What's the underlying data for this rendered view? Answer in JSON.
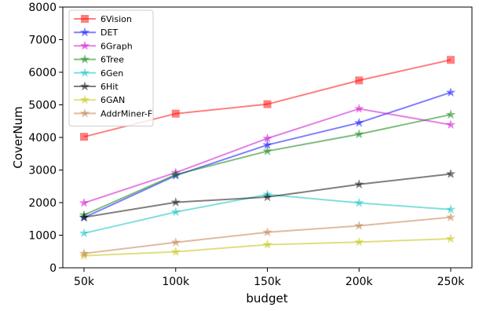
{
  "chart_data": {
    "type": "line",
    "title": "",
    "xlabel": "budget",
    "ylabel": "CoverNum",
    "categories": [
      "50k",
      "100k",
      "150k",
      "200k",
      "250k"
    ],
    "ylim": [
      0,
      8000
    ],
    "yticks": [
      0,
      1000,
      2000,
      3000,
      4000,
      5000,
      6000,
      7000,
      8000
    ],
    "grid": false,
    "legend_position": "top-left",
    "series": [
      {
        "name": "6Vision",
        "color": "#ff0000",
        "marker": "square",
        "values": [
          4020,
          4730,
          5020,
          5750,
          6380
        ]
      },
      {
        "name": "DET",
        "color": "#0000ff",
        "marker": "star",
        "values": [
          1540,
          2830,
          3770,
          4450,
          5380
        ]
      },
      {
        "name": "6Graph",
        "color": "#cc00cc",
        "marker": "star",
        "values": [
          1990,
          2920,
          3970,
          4880,
          4390
        ]
      },
      {
        "name": "6Tree",
        "color": "#008000",
        "marker": "star",
        "values": [
          1620,
          2860,
          3580,
          4100,
          4700
        ]
      },
      {
        "name": "6Gen",
        "color": "#00c0c0",
        "marker": "star",
        "values": [
          1060,
          1710,
          2250,
          1990,
          1790
        ]
      },
      {
        "name": "6Hit",
        "color": "#000000",
        "marker": "star",
        "values": [
          1550,
          2010,
          2170,
          2560,
          2880
        ]
      },
      {
        "name": "6GAN",
        "color": "#bfbf00",
        "marker": "star",
        "values": [
          370,
          490,
          710,
          790,
          890
        ]
      },
      {
        "name": "AddrMiner-F",
        "color": "#c07840",
        "marker": "star",
        "values": [
          440,
          780,
          1090,
          1290,
          1550
        ]
      }
    ]
  }
}
